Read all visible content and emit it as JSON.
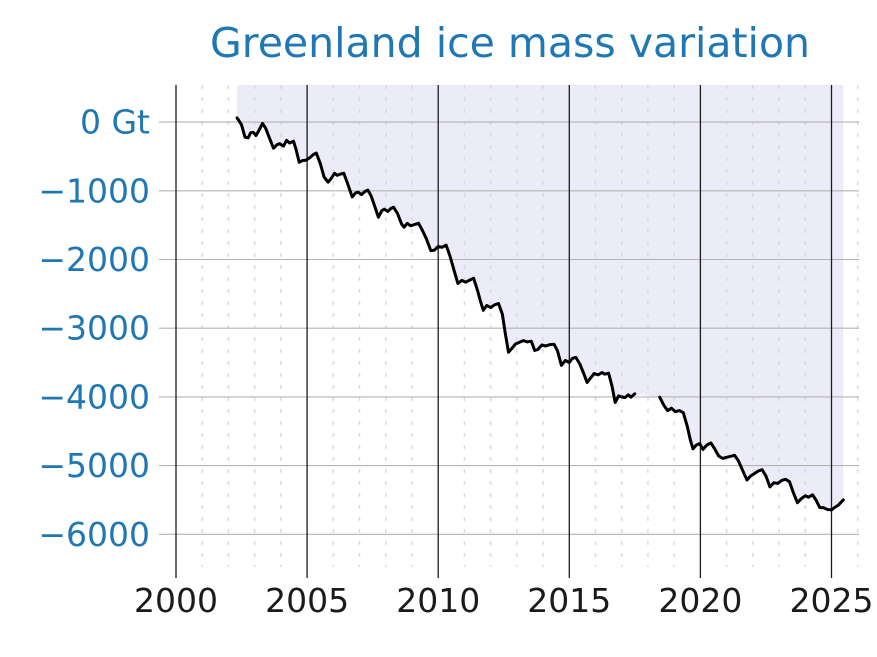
{
  "page": {
    "background": "#ffffff"
  },
  "chart_data": {
    "type": "line",
    "title": "Greenland ice mass variation",
    "unit": "Gt",
    "colors": {
      "title": "#1f77b4",
      "y_tick_label": "#1f77b4",
      "x_tick_label": "#1a1a1a",
      "line": "#000000",
      "fill_above_line": "#ebecf7",
      "major_x_grid": "#1c1c1c",
      "minor_x_grid": "#d7d8e0",
      "y_grid": "#b3b3b3"
    },
    "xlim": [
      2000,
      2026.05
    ],
    "ylim": [
      -6520,
      540
    ],
    "x_ticks_major": [
      2000,
      2005,
      2010,
      2015,
      2020,
      2025
    ],
    "x_tick_labels": [
      "2000",
      "2005",
      "2010",
      "2015",
      "2020",
      "2025"
    ],
    "x_minor_tick_step_years": 1,
    "y_ticks": [
      0,
      -1000,
      -2000,
      -3000,
      -4000,
      -5000,
      -6000
    ],
    "y_tick_labels": [
      "0 Gt",
      "−1000",
      "−2000",
      "−3000",
      "−4000",
      "−5000",
      "−6000"
    ],
    "grid": {
      "major_x": "solid",
      "minor_x": "dashed",
      "major_y": "solid",
      "legend": "none"
    },
    "data_gap_years": [
      2017.5,
      2018.45
    ],
    "fill_between": "curve-and-plot-top",
    "series": [
      {
        "name": "ice-mass-anomaly-grace",
        "points": [
          [
            2002.33,
            60
          ],
          [
            2002.42,
            10
          ],
          [
            2002.5,
            -40
          ],
          [
            2002.63,
            -220
          ],
          [
            2002.75,
            -230
          ],
          [
            2002.85,
            -155
          ],
          [
            2002.95,
            -150
          ],
          [
            2003.05,
            -195
          ],
          [
            2003.15,
            -130
          ],
          [
            2003.3,
            -20
          ],
          [
            2003.42,
            -90
          ],
          [
            2003.55,
            -220
          ],
          [
            2003.72,
            -380
          ],
          [
            2003.85,
            -330
          ],
          [
            2003.95,
            -315
          ],
          [
            2004.1,
            -350
          ],
          [
            2004.22,
            -265
          ],
          [
            2004.33,
            -305
          ],
          [
            2004.48,
            -278
          ],
          [
            2004.58,
            -400
          ],
          [
            2004.7,
            -585
          ],
          [
            2004.82,
            -560
          ],
          [
            2004.95,
            -555
          ],
          [
            2005.1,
            -520
          ],
          [
            2005.25,
            -470
          ],
          [
            2005.35,
            -452
          ],
          [
            2005.5,
            -600
          ],
          [
            2005.65,
            -800
          ],
          [
            2005.8,
            -875
          ],
          [
            2005.92,
            -820
          ],
          [
            2006.05,
            -745
          ],
          [
            2006.15,
            -775
          ],
          [
            2006.28,
            -755
          ],
          [
            2006.4,
            -745
          ],
          [
            2006.55,
            -900
          ],
          [
            2006.72,
            -1090
          ],
          [
            2006.85,
            -1030
          ],
          [
            2006.95,
            -1020
          ],
          [
            2007.08,
            -1055
          ],
          [
            2007.2,
            -1010
          ],
          [
            2007.32,
            -990
          ],
          [
            2007.45,
            -1080
          ],
          [
            2007.6,
            -1250
          ],
          [
            2007.72,
            -1385
          ],
          [
            2007.85,
            -1290
          ],
          [
            2007.95,
            -1268
          ],
          [
            2008.08,
            -1300
          ],
          [
            2008.2,
            -1255
          ],
          [
            2008.3,
            -1240
          ],
          [
            2008.45,
            -1330
          ],
          [
            2008.6,
            -1480
          ],
          [
            2008.7,
            -1530
          ],
          [
            2008.82,
            -1475
          ],
          [
            2008.95,
            -1510
          ],
          [
            2009.1,
            -1490
          ],
          [
            2009.25,
            -1472
          ],
          [
            2009.4,
            -1580
          ],
          [
            2009.55,
            -1700
          ],
          [
            2009.72,
            -1870
          ],
          [
            2009.85,
            -1865
          ],
          [
            2010.0,
            -1810
          ],
          [
            2010.15,
            -1822
          ],
          [
            2010.3,
            -1790
          ],
          [
            2010.45,
            -1950
          ],
          [
            2010.6,
            -2150
          ],
          [
            2010.75,
            -2350
          ],
          [
            2010.9,
            -2305
          ],
          [
            2011.05,
            -2330
          ],
          [
            2011.2,
            -2300
          ],
          [
            2011.35,
            -2272
          ],
          [
            2011.5,
            -2450
          ],
          [
            2011.62,
            -2620
          ],
          [
            2011.72,
            -2740
          ],
          [
            2011.85,
            -2670
          ],
          [
            2012.0,
            -2700
          ],
          [
            2012.15,
            -2660
          ],
          [
            2012.3,
            -2640
          ],
          [
            2012.45,
            -2800
          ],
          [
            2012.55,
            -3050
          ],
          [
            2012.68,
            -3350
          ],
          [
            2012.8,
            -3300
          ],
          [
            2012.95,
            -3230
          ],
          [
            2013.1,
            -3205
          ],
          [
            2013.25,
            -3180
          ],
          [
            2013.4,
            -3200
          ],
          [
            2013.55,
            -3190
          ],
          [
            2013.68,
            -3325
          ],
          [
            2013.8,
            -3310
          ],
          [
            2013.95,
            -3245
          ],
          [
            2014.1,
            -3260
          ],
          [
            2014.25,
            -3240
          ],
          [
            2014.42,
            -3235
          ],
          [
            2014.55,
            -3330
          ],
          [
            2014.7,
            -3540
          ],
          [
            2014.85,
            -3470
          ],
          [
            2015.0,
            -3500
          ],
          [
            2015.12,
            -3440
          ],
          [
            2015.25,
            -3425
          ],
          [
            2015.4,
            -3520
          ],
          [
            2015.55,
            -3660
          ],
          [
            2015.68,
            -3790
          ],
          [
            2015.8,
            -3730
          ],
          [
            2015.95,
            -3660
          ],
          [
            2016.1,
            -3680
          ],
          [
            2016.25,
            -3645
          ],
          [
            2016.35,
            -3670
          ],
          [
            2016.5,
            -3655
          ],
          [
            2016.62,
            -3830
          ],
          [
            2016.75,
            -4080
          ],
          [
            2016.88,
            -3985
          ],
          [
            2017.0,
            -4000
          ],
          [
            2017.12,
            -4010
          ],
          [
            2017.25,
            -3970
          ],
          [
            2017.35,
            -4005
          ],
          [
            2017.5,
            -3955
          ]
        ]
      },
      {
        "name": "ice-mass-anomaly-grace-fo",
        "points": [
          [
            2018.45,
            -4005
          ],
          [
            2018.6,
            -4120
          ],
          [
            2018.75,
            -4200
          ],
          [
            2018.9,
            -4165
          ],
          [
            2019.05,
            -4215
          ],
          [
            2019.2,
            -4200
          ],
          [
            2019.35,
            -4230
          ],
          [
            2019.5,
            -4430
          ],
          [
            2019.62,
            -4630
          ],
          [
            2019.72,
            -4755
          ],
          [
            2019.85,
            -4700
          ],
          [
            2019.97,
            -4680
          ],
          [
            2020.1,
            -4765
          ],
          [
            2020.25,
            -4700
          ],
          [
            2020.4,
            -4670
          ],
          [
            2020.55,
            -4760
          ],
          [
            2020.7,
            -4860
          ],
          [
            2020.85,
            -4895
          ],
          [
            2021.0,
            -4880
          ],
          [
            2021.15,
            -4865
          ],
          [
            2021.3,
            -4850
          ],
          [
            2021.45,
            -4930
          ],
          [
            2021.6,
            -5060
          ],
          [
            2021.78,
            -5210
          ],
          [
            2021.92,
            -5150
          ],
          [
            2022.07,
            -5115
          ],
          [
            2022.2,
            -5080
          ],
          [
            2022.35,
            -5058
          ],
          [
            2022.5,
            -5150
          ],
          [
            2022.65,
            -5310
          ],
          [
            2022.8,
            -5250
          ],
          [
            2022.95,
            -5260
          ],
          [
            2023.1,
            -5215
          ],
          [
            2023.25,
            -5200
          ],
          [
            2023.4,
            -5235
          ],
          [
            2023.55,
            -5400
          ],
          [
            2023.7,
            -5540
          ],
          [
            2023.85,
            -5480
          ],
          [
            2024.0,
            -5440
          ],
          [
            2024.12,
            -5460
          ],
          [
            2024.28,
            -5425
          ],
          [
            2024.42,
            -5510
          ],
          [
            2024.55,
            -5610
          ],
          [
            2024.7,
            -5615
          ],
          [
            2024.85,
            -5640
          ],
          [
            2025.0,
            -5645
          ],
          [
            2025.12,
            -5610
          ],
          [
            2025.25,
            -5580
          ],
          [
            2025.45,
            -5500
          ]
        ]
      }
    ]
  }
}
